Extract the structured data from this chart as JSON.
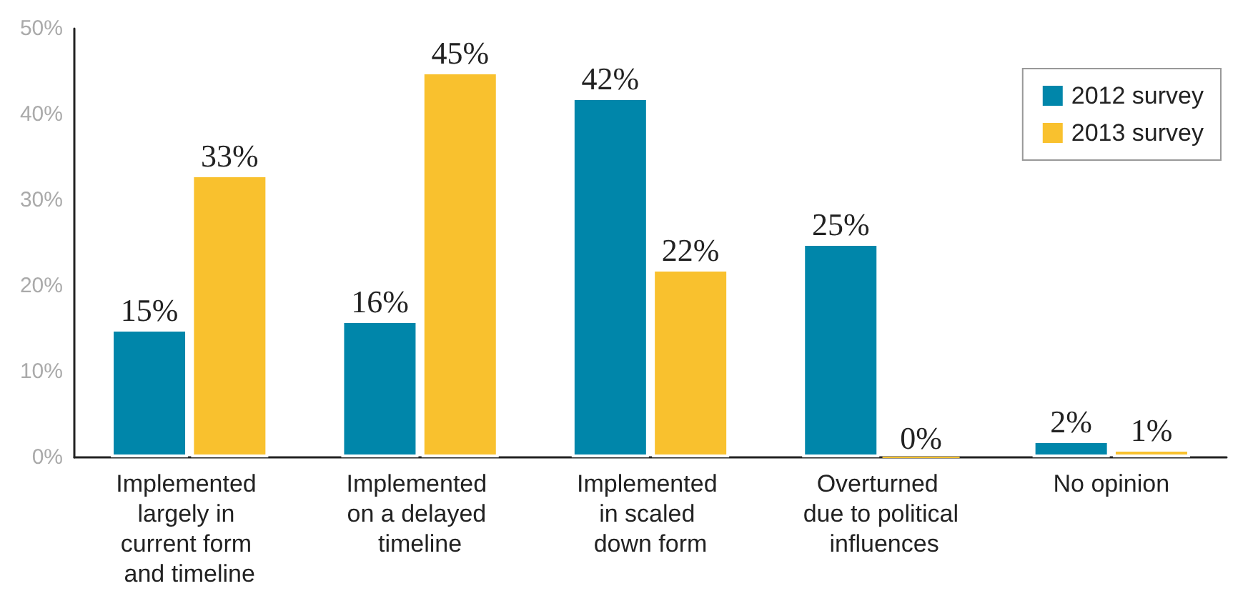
{
  "chart_data": {
    "type": "bar",
    "categories": [
      "Implemented largely in current form and timeline",
      "Implemented on a delayed timeline",
      "Implemented in scaled down form",
      "Overturned due to political influences",
      "No opinion"
    ],
    "series": [
      {
        "name": "2012 survey",
        "color": "#0086aa",
        "values": [
          15,
          16,
          42,
          25,
          2
        ],
        "value_labels": [
          "15%",
          "16%",
          "42%",
          "25%",
          "2%"
        ]
      },
      {
        "name": "2013 survey",
        "color": "#f9c12e",
        "values": [
          33,
          45,
          22,
          0,
          1
        ],
        "value_labels": [
          "33%",
          "45%",
          "22%",
          "0%",
          "1%"
        ]
      }
    ],
    "ylim": [
      0,
      50
    ],
    "yticks": [
      {
        "value": 0,
        "label": "0%"
      },
      {
        "value": 10,
        "label": "10%"
      },
      {
        "value": 20,
        "label": "20%"
      },
      {
        "value": 30,
        "label": "30%"
      },
      {
        "value": 40,
        "label": "40%"
      },
      {
        "value": 50,
        "label": "50%"
      }
    ],
    "grid": false,
    "legend": "top right"
  }
}
